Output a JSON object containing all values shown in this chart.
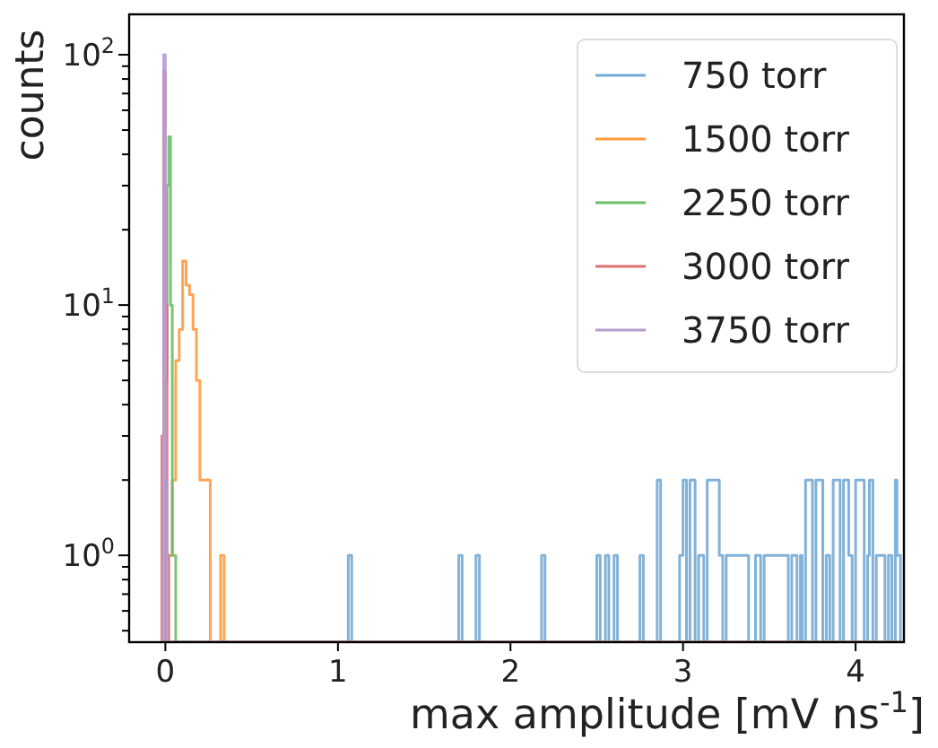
{
  "chart_data": {
    "type": "histogram",
    "xlabel": "max amplitude [mV ns$^{-1}$]",
    "ylabel": "counts",
    "log": "y",
    "xlim": [
      -0.21,
      4.28
    ],
    "ylim": [
      0.45,
      145
    ],
    "xticks": [
      0,
      1,
      2,
      3,
      4
    ],
    "yticks": [
      {
        "value": 0.5,
        "label": null
      },
      {
        "value": 0.6,
        "label": null
      },
      {
        "value": 0.7,
        "label": null
      },
      {
        "value": 0.8,
        "label": null
      },
      {
        "value": 0.9,
        "label": null
      },
      {
        "value": 1,
        "label": "10$^{0}$"
      },
      {
        "value": 2,
        "label": null
      },
      {
        "value": 3,
        "label": null
      },
      {
        "value": 4,
        "label": null
      },
      {
        "value": 5,
        "label": null
      },
      {
        "value": 6,
        "label": null
      },
      {
        "value": 7,
        "label": null
      },
      {
        "value": 8,
        "label": null
      },
      {
        "value": 9,
        "label": null
      },
      {
        "value": 10,
        "label": "10$^{1}$"
      },
      {
        "value": 20,
        "label": null
      },
      {
        "value": 30,
        "label": null
      },
      {
        "value": 40,
        "label": null
      },
      {
        "value": 50,
        "label": null
      },
      {
        "value": 60,
        "label": null
      },
      {
        "value": 70,
        "label": null
      },
      {
        "value": 80,
        "label": null
      },
      {
        "value": 90,
        "label": null
      },
      {
        "value": 100,
        "label": "10$^{2}$"
      }
    ],
    "grid": false,
    "legend": "top right",
    "bins": [
      -0.02,
      -0.01,
      0,
      0.01,
      0.02,
      0.03,
      0.04,
      0.05,
      0.06,
      0.08,
      0.1,
      0.12,
      0.14,
      0.16,
      0.18,
      0.2,
      0.22,
      0.24,
      0.26,
      0.28,
      0.3,
      0.32,
      0.34,
      1.06,
      1.08,
      1.7,
      1.72,
      1.8,
      1.82,
      2.18,
      2.2,
      2.5,
      2.52,
      2.55,
      2.57,
      2.6,
      2.62,
      2.75,
      2.77,
      2.85,
      2.87,
      2.98,
      3.0,
      3.02,
      3.04,
      3.07,
      3.09,
      3.12,
      3.14,
      3.21,
      3.23,
      3.25,
      3.38,
      3.42,
      3.45,
      3.47,
      3.61,
      3.63,
      3.66,
      3.68,
      3.69,
      3.71,
      3.75,
      3.77,
      3.81,
      3.83,
      3.85,
      3.87,
      3.91,
      3.93,
      3.96,
      3.98,
      4.0,
      4.05,
      4.07,
      4.08,
      4.1,
      4.12,
      4.17,
      4.19,
      4.21,
      4.23,
      4.24,
      4.26,
      4.27
    ],
    "series": [
      {
        "name": "750 torr",
        "color": "#74aad4",
        "values": [
          null,
          null,
          null,
          null,
          null,
          null,
          null,
          null,
          null,
          null,
          null,
          null,
          null,
          null,
          null,
          null,
          null,
          null,
          null,
          null,
          null,
          null,
          null,
          1,
          null,
          1,
          null,
          1,
          null,
          1,
          null,
          1,
          null,
          1,
          null,
          1,
          null,
          1,
          null,
          2,
          null,
          1,
          2,
          null,
          2,
          null,
          1,
          null,
          2,
          1,
          null,
          1,
          null,
          1,
          null,
          1,
          null,
          1,
          null,
          1,
          null,
          2,
          null,
          2,
          null,
          1,
          null,
          2,
          null,
          2,
          1,
          null,
          2,
          null,
          1,
          2,
          null,
          1,
          null,
          1,
          null,
          2,
          1,
          null
        ]
      },
      {
        "name": "1500 torr",
        "color": "#ff9a40",
        "values": [
          null,
          null,
          1,
          1,
          1,
          1,
          2,
          2,
          6,
          8,
          15,
          12,
          11,
          8,
          5,
          2,
          2,
          2,
          null,
          null,
          null,
          1,
          null,
          null,
          null,
          null,
          null,
          null,
          null,
          null,
          null,
          null,
          null,
          null,
          null,
          null,
          null,
          null,
          null,
          null,
          null,
          null,
          null,
          null,
          null,
          null,
          null,
          null,
          null,
          null,
          null,
          null,
          null,
          null,
          null,
          null,
          null,
          null,
          null,
          null,
          null,
          null,
          null,
          null,
          null,
          null,
          null,
          null,
          null,
          null,
          null,
          null,
          null,
          null,
          null,
          null,
          null,
          null,
          null,
          null,
          null,
          null,
          null,
          null
        ]
      },
      {
        "name": "2250 torr",
        "color": "#6abf6a",
        "values": [
          null,
          null,
          5,
          30,
          47,
          10,
          1,
          1,
          null,
          null,
          null,
          null,
          null,
          null,
          null,
          null,
          null,
          null,
          null,
          null,
          null,
          null,
          null,
          null,
          null,
          null,
          null,
          null,
          null,
          null,
          null,
          null,
          null,
          null,
          null,
          null,
          null,
          null,
          null,
          null,
          null,
          null,
          null,
          null,
          null,
          null,
          null,
          null,
          null,
          null,
          null,
          null,
          null,
          null,
          null,
          null,
          null,
          null,
          null,
          null,
          null,
          null,
          null,
          null,
          null,
          null,
          null,
          null,
          null,
          null,
          null,
          null,
          null,
          null,
          null,
          null,
          null,
          null,
          null,
          null,
          null,
          null,
          null,
          null
        ]
      },
      {
        "name": "3000 torr",
        "color": "#e07070",
        "values": [
          3,
          86,
          10,
          1,
          null,
          null,
          null,
          null,
          null,
          null,
          null,
          null,
          null,
          null,
          null,
          null,
          null,
          null,
          null,
          null,
          null,
          null,
          null,
          null,
          null,
          null,
          null,
          null,
          null,
          null,
          null,
          null,
          null,
          null,
          null,
          null,
          null,
          null,
          null,
          null,
          null,
          null,
          null,
          null,
          null,
          null,
          null,
          null,
          null,
          null,
          null,
          null,
          null,
          null,
          null,
          null,
          null,
          null,
          null,
          null,
          null,
          null,
          null,
          null,
          null,
          null,
          null,
          null,
          null,
          null,
          null,
          null,
          null,
          null,
          null,
          null,
          null,
          null,
          null,
          null,
          null,
          null,
          null,
          null
        ]
      },
      {
        "name": "3750 torr",
        "color": "#b89bd0",
        "values": [
          null,
          100,
          2,
          null,
          null,
          null,
          null,
          null,
          null,
          null,
          null,
          null,
          null,
          null,
          null,
          null,
          null,
          null,
          null,
          null,
          null,
          null,
          null,
          null,
          null,
          null,
          null,
          null,
          null,
          null,
          null,
          null,
          null,
          null,
          null,
          null,
          null,
          null,
          null,
          null,
          null,
          null,
          null,
          null,
          null,
          null,
          null,
          null,
          null,
          null,
          null,
          null,
          null,
          null,
          null,
          null,
          null,
          null,
          null,
          null,
          null,
          null,
          null,
          null,
          null,
          null,
          null,
          null,
          null,
          null,
          null,
          null,
          null,
          null,
          null,
          null,
          null,
          null,
          null,
          null,
          null,
          null,
          null,
          null
        ]
      }
    ]
  }
}
